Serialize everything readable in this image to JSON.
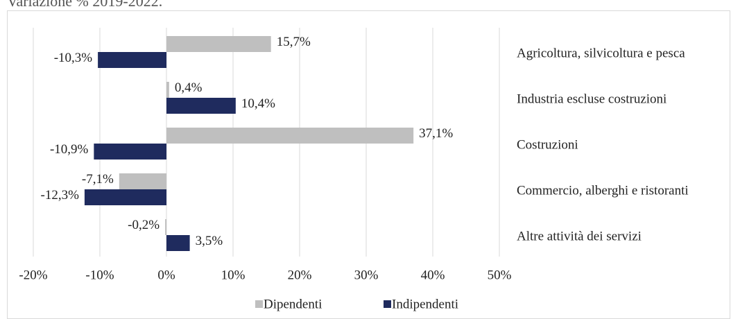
{
  "chart_data": {
    "type": "bar",
    "orientation": "horizontal",
    "title": "Variazione % 2019-2022.",
    "categories": [
      "Agricoltura, silvicoltura e pesca",
      "Industria escluse costruzioni",
      "Costruzioni",
      "Commercio, alberghi e ristoranti",
      "Altre attività dei servizi"
    ],
    "series": [
      {
        "name": "Dipendenti",
        "color": "#bfbfbf",
        "values": [
          15.7,
          0.4,
          37.1,
          -7.1,
          -0.2
        ],
        "value_labels": [
          "15,7%",
          "0,4%",
          "37,1%",
          "-7,1%",
          "-0,2%"
        ]
      },
      {
        "name": "Indipendenti",
        "color": "#1f2b5e",
        "values": [
          -10.3,
          10.4,
          -10.9,
          -12.3,
          3.5
        ],
        "value_labels": [
          "-10,3%",
          "10,4%",
          "-10,9%",
          "-12,3%",
          "3,5%"
        ]
      }
    ],
    "xlim": [
      -20,
      50
    ],
    "xticks": [
      {
        "value": -20,
        "label": "-20%"
      },
      {
        "value": -10,
        "label": "-10%"
      },
      {
        "value": 0,
        "label": "0%"
      },
      {
        "value": 10,
        "label": "10%"
      },
      {
        "value": 20,
        "label": "20%"
      },
      {
        "value": 30,
        "label": "30%"
      },
      {
        "value": 40,
        "label": "40%"
      },
      {
        "value": 50,
        "label": "50%"
      }
    ],
    "grid": true,
    "legend": "bottom"
  }
}
